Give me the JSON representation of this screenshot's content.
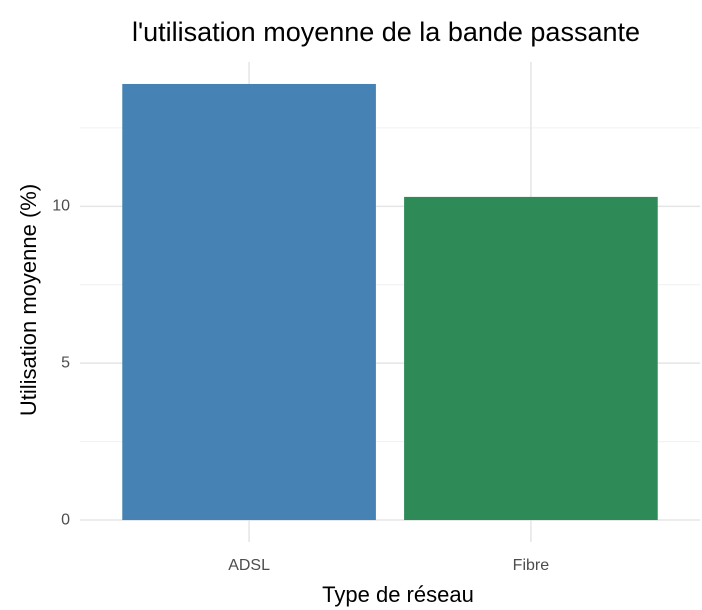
{
  "chart_data": {
    "type": "bar",
    "title": "l'utilisation moyenne de la bande passante",
    "x_label": "Type de réseau",
    "y_label": "Utilisation moyenne (%)",
    "categories": [
      "ADSL",
      "Fibre"
    ],
    "values": [
      13.9,
      10.3
    ],
    "colors": [
      "#4682b4",
      "#2e8b57"
    ],
    "ylim": [
      -0.7,
      14.6
    ],
    "yticks": [
      0,
      5,
      10
    ],
    "minor_yticks": [
      2.5,
      7.5,
      12.5
    ],
    "grid": true
  }
}
